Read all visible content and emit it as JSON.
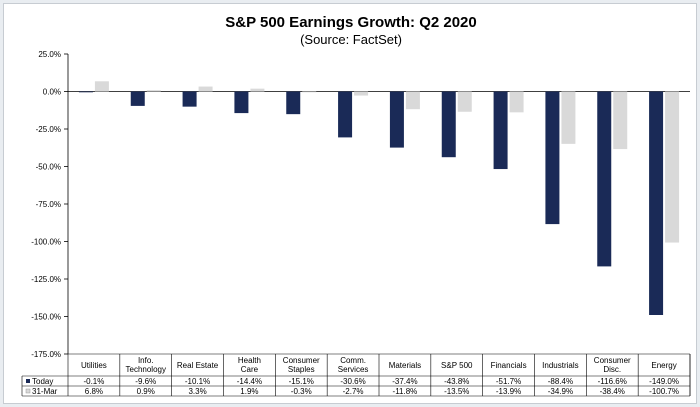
{
  "chart_data": {
    "type": "bar",
    "title": "S&P 500 Earnings Growth: Q2 2020",
    "subtitle": "(Source: FactSet)",
    "categories": [
      [
        "Utilities"
      ],
      [
        "Info.",
        "Technology"
      ],
      [
        "Real Estate"
      ],
      [
        "Health",
        "Care"
      ],
      [
        "Consumer",
        "Staples"
      ],
      [
        "Comm.",
        "Services"
      ],
      [
        "Materials"
      ],
      [
        "S&P 500"
      ],
      [
        "Financials"
      ],
      [
        "Industrials"
      ],
      [
        "Consumer",
        "Disc."
      ],
      [
        "Energy"
      ]
    ],
    "series": [
      {
        "name": "Today",
        "color": "#1a2a57",
        "values": [
          -0.1,
          -9.6,
          -10.1,
          -14.4,
          -15.1,
          -30.6,
          -37.4,
          -43.8,
          -51.7,
          -88.4,
          -116.6,
          -149.0
        ],
        "labels": [
          "-0.1%",
          "-9.6%",
          "-10.1%",
          "-14.4%",
          "-15.1%",
          "-30.6%",
          "-37.4%",
          "-43.8%",
          "-51.7%",
          "-88.4%",
          "-116.6%",
          "-149.0%"
        ]
      },
      {
        "name": "31-Mar",
        "color": "#d9d9d9",
        "values": [
          6.8,
          0.9,
          3.3,
          1.9,
          -0.3,
          -2.7,
          -11.8,
          -13.5,
          -13.9,
          -34.9,
          -38.4,
          -100.7
        ],
        "labels": [
          "6.8%",
          "0.9%",
          "3.3%",
          "1.9%",
          "-0.3%",
          "-2.7%",
          "-11.8%",
          "-13.5%",
          "-13.9%",
          "-34.9%",
          "-38.4%",
          "-100.7%"
        ]
      }
    ],
    "ylim": [
      -175,
      25
    ],
    "yticks": [
      25,
      0,
      -25,
      -50,
      -75,
      -100,
      -125,
      -150,
      -175
    ],
    "ytick_labels": [
      "25.0%",
      "0.0%",
      "-25.0%",
      "-50.0%",
      "-75.0%",
      "-100.0%",
      "-125.0%",
      "-150.0%",
      "-175.0%"
    ],
    "legend": "data-table-below",
    "grid": false
  }
}
